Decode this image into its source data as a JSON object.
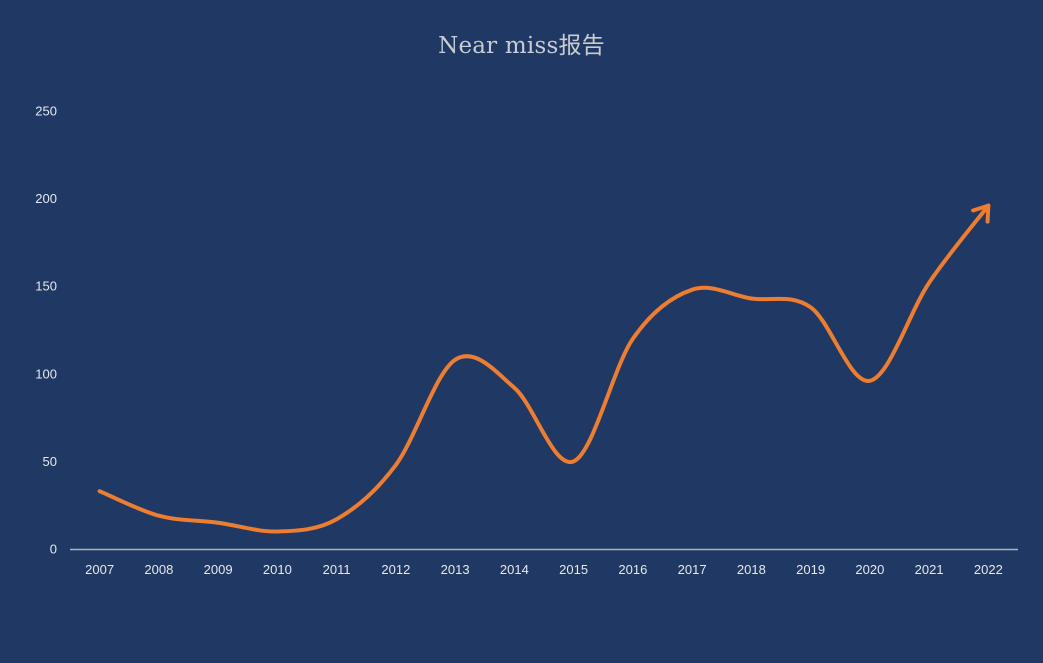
{
  "chart_data": {
    "type": "line",
    "title": "Near miss报告",
    "xlabel": "",
    "ylabel": "",
    "categories": [
      "2007",
      "2008",
      "2009",
      "2010",
      "2011",
      "2012",
      "2013",
      "2014",
      "2015",
      "2016",
      "2017",
      "2018",
      "2019",
      "2020",
      "2021",
      "2022"
    ],
    "series": [
      {
        "values": [
          33,
          19,
          15,
          10,
          17,
          48,
          108,
          92,
          50,
          120,
          148,
          143,
          138,
          96,
          152,
          196
        ]
      }
    ],
    "ylim": [
      0,
      250
    ],
    "yticks": [
      "0",
      "50",
      "100",
      "150",
      "200",
      "250"
    ],
    "grid": false,
    "smooth": true,
    "end_arrow": true,
    "legend": "none",
    "colors": {
      "background": "#1f3864",
      "line": "#ed7d31",
      "axis": "#a9b3c8",
      "text": "#e6e8ee"
    }
  }
}
